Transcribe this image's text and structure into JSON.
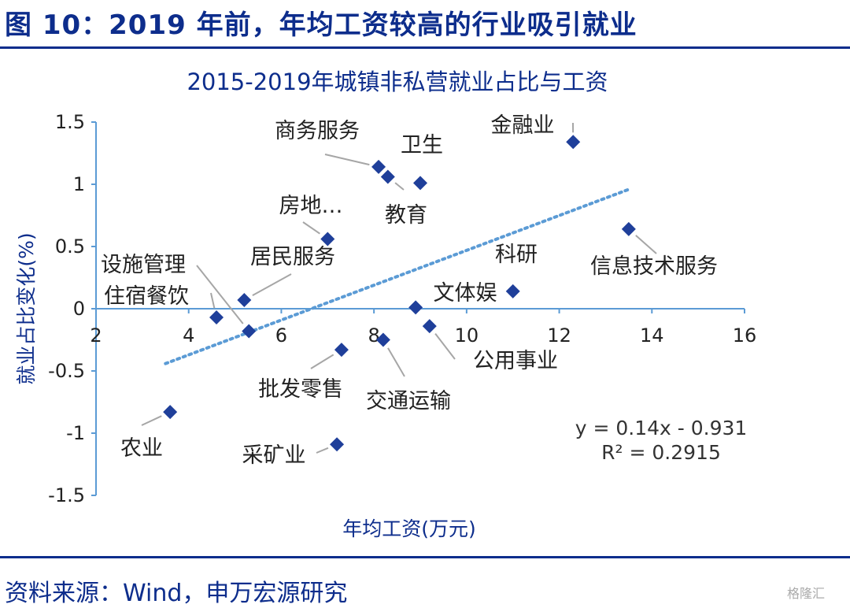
{
  "figure_title": "图 10：2019 年前，年均工资较高的行业吸引就业",
  "source": "资料来源：Wind，申万宏源研究",
  "watermark": "格隆汇",
  "colors": {
    "brand": "#0d2d8c",
    "point": "#1f3f9a",
    "trendline": "#5b9bd5",
    "axis": "#5b9bd5"
  },
  "chart_data": {
    "type": "scatter",
    "title": "2015-2019年城镇非私营就业占比与工资",
    "xlabel": "年均工资(万元)",
    "ylabel": "就业占比变化(%)",
    "xlim": [
      2,
      16
    ],
    "ylim": [
      -1.5,
      1.5
    ],
    "x_ticks": [
      "2",
      "4",
      "6",
      "8",
      "10",
      "12",
      "14",
      "16"
    ],
    "y_ticks": [
      "1.5",
      "1",
      "0.5",
      "0",
      "-0.5",
      "-1",
      "-1.5"
    ],
    "points": [
      {
        "label": "农业",
        "x": 3.6,
        "y": -0.83
      },
      {
        "label": "住宿餐饮",
        "x": 4.6,
        "y": -0.07
      },
      {
        "label": "设施管理",
        "x": 5.3,
        "y": -0.18
      },
      {
        "label": "居民服务",
        "x": 5.2,
        "y": 0.07
      },
      {
        "label": "房地…",
        "x": 7.0,
        "y": 0.56
      },
      {
        "label": "批发零售",
        "x": 7.3,
        "y": -0.33
      },
      {
        "label": "采矿业",
        "x": 7.2,
        "y": -1.09
      },
      {
        "label": "商务服务",
        "x": 8.1,
        "y": 1.14
      },
      {
        "label": "教育",
        "x": 8.3,
        "y": 1.06
      },
      {
        "label": "交通运输",
        "x": 8.2,
        "y": -0.25
      },
      {
        "label": "卫生",
        "x": 9.0,
        "y": 1.01
      },
      {
        "label": "文体娱",
        "x": 8.9,
        "y": 0.01
      },
      {
        "label": "公用事业",
        "x": 9.2,
        "y": -0.14
      },
      {
        "label": "科研",
        "x": 11.0,
        "y": 0.14
      },
      {
        "label": "金融业",
        "x": 12.3,
        "y": 1.34
      },
      {
        "label": "信息技术服务",
        "x": 13.5,
        "y": 0.64
      }
    ],
    "trendline": {
      "type": "linear",
      "slope": 0.14,
      "intercept": -0.931,
      "x_range": [
        3.5,
        13.5
      ]
    },
    "equation": "y = 0.14x - 0.931",
    "r_squared": "R² = 0.2915",
    "grid": false,
    "legend": "none"
  }
}
